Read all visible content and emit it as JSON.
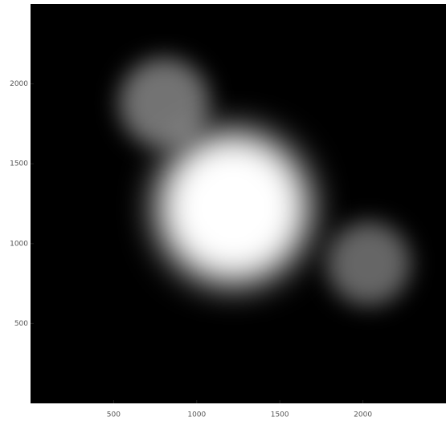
{
  "chart_data": {
    "type": "density",
    "x": [
      1220,
      805,
      2035
    ],
    "y": [
      1225,
      1880,
      875
    ],
    "values": [
      1,
      0.35,
      0.3
    ],
    "color": "#ffffff",
    "background": "#000000",
    "xlim": [
      0,
      2500
    ],
    "ylim": [
      0,
      2500
    ],
    "xticks": [
      500,
      1000,
      1500,
      2000
    ],
    "yticks": [
      500,
      1000,
      1500,
      2000
    ]
  }
}
